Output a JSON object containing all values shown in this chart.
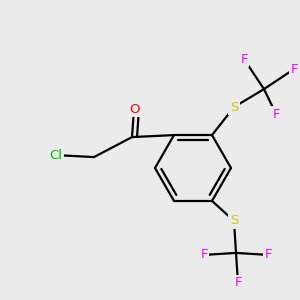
{
  "bg_color": "#ebebeb",
  "atom_colors": {
    "C": "#000000",
    "O": "#ff0000",
    "Cl": "#00bb00",
    "S": "#cccc00",
    "F": "#ff00ff"
  },
  "bond_color": "#000000",
  "bond_width": 1.6
}
